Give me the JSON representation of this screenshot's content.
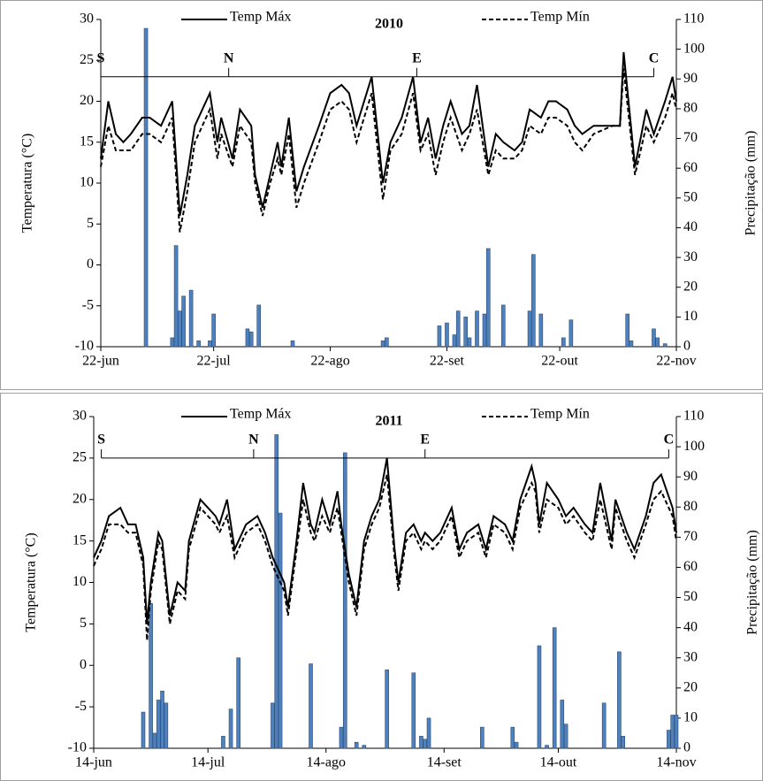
{
  "chart_data": [
    {
      "type": "combo",
      "title": "2010",
      "y_label": "Temperatura (°C)",
      "y2_label": "Precipitação (mm)",
      "xlim": [
        0,
        153
      ],
      "xticks": [
        {
          "value": 0,
          "label": "22-jun"
        },
        {
          "value": 30,
          "label": "22-jul"
        },
        {
          "value": 61,
          "label": "22-ago"
        },
        {
          "value": 92,
          "label": "22-set"
        },
        {
          "value": 122,
          "label": "22-out"
        },
        {
          "value": 153,
          "label": "22-nov"
        }
      ],
      "ylim": [
        -10,
        30
      ],
      "yticks": [
        -10,
        -5,
        0,
        5,
        10,
        15,
        20,
        25,
        30
      ],
      "y2lim": [
        0,
        110
      ],
      "y2ticks": [
        0,
        10,
        20,
        30,
        40,
        50,
        60,
        70,
        80,
        90,
        100,
        110
      ],
      "markers": [
        {
          "label": "S",
          "x": 0
        },
        {
          "label": "N",
          "x": 34
        },
        {
          "label": "E",
          "x": 84
        },
        {
          "label": "C",
          "x": 147
        }
      ],
      "marker_level": 23,
      "series": [
        {
          "name": "Temp Máx",
          "color": "#000000",
          "style": "solid",
          "x": [
            0,
            2,
            4,
            6,
            8,
            11,
            13,
            16,
            19,
            21,
            23,
            25,
            28,
            29,
            31,
            32,
            35,
            37,
            40,
            41,
            43,
            45,
            47,
            48,
            50,
            52,
            54,
            58,
            61,
            64,
            66,
            68,
            72,
            75,
            77,
            80,
            83,
            85,
            87,
            89,
            91,
            93,
            96,
            98,
            100,
            103,
            105,
            107,
            110,
            112,
            114,
            117,
            119,
            121,
            124,
            126,
            128,
            131,
            136,
            138,
            139,
            142,
            145,
            147,
            150,
            152,
            153
          ],
          "values": [
            13,
            20,
            16,
            15,
            16,
            18,
            18,
            17,
            20,
            6,
            11,
            17,
            20,
            21,
            15,
            18,
            13,
            19,
            17,
            11,
            7,
            11,
            15,
            12,
            18,
            9,
            12,
            17,
            21,
            22,
            21,
            17,
            23,
            10,
            15,
            18,
            23,
            15,
            18,
            13,
            17,
            20,
            16,
            17,
            22,
            12,
            16,
            15,
            14,
            15,
            19,
            18,
            20,
            20,
            19,
            17,
            16,
            17,
            17,
            17,
            26,
            12,
            19,
            16,
            20,
            23,
            20
          ]
        },
        {
          "name": "Temp Mín",
          "color": "#000000",
          "style": "dashed",
          "x": [
            0,
            2,
            4,
            6,
            8,
            11,
            13,
            16,
            19,
            21,
            23,
            25,
            28,
            29,
            31,
            32,
            35,
            37,
            40,
            41,
            43,
            45,
            47,
            48,
            50,
            52,
            54,
            58,
            61,
            64,
            66,
            68,
            72,
            75,
            77,
            80,
            83,
            85,
            87,
            89,
            91,
            93,
            96,
            98,
            100,
            103,
            105,
            107,
            110,
            112,
            114,
            117,
            119,
            121,
            124,
            126,
            128,
            131,
            136,
            138,
            139,
            142,
            145,
            147,
            150,
            152,
            153
          ],
          "values": [
            12,
            17,
            14,
            14,
            14,
            16,
            16,
            15,
            18,
            4,
            9,
            15,
            18,
            19,
            13,
            16,
            12,
            17,
            15,
            10,
            6,
            10,
            13,
            11,
            16,
            7,
            10,
            15,
            19,
            20,
            19,
            15,
            21,
            8,
            14,
            16,
            21,
            14,
            16,
            11,
            15,
            18,
            14,
            16,
            19,
            11,
            14,
            13,
            13,
            14,
            17,
            16,
            18,
            18,
            17,
            15,
            14,
            16,
            17,
            17,
            24,
            11,
            17,
            15,
            18,
            21,
            19
          ]
        }
      ],
      "bars": {
        "color": "#4f81bd",
        "axis": "y2",
        "x": [
          12,
          19,
          20,
          21,
          22,
          24,
          26,
          29,
          30,
          39,
          40,
          42,
          51,
          75,
          76,
          90,
          92,
          94,
          95,
          97,
          98,
          100,
          102,
          103,
          107,
          114,
          115,
          117,
          123,
          125,
          140,
          141,
          147,
          148,
          150
        ],
        "values": [
          107,
          3,
          34,
          12,
          17,
          19,
          2,
          2,
          11,
          6,
          5,
          14,
          2,
          2,
          3,
          7,
          8,
          4,
          12,
          10,
          3,
          12,
          11,
          33,
          14,
          12,
          31,
          11,
          3,
          9,
          11,
          2,
          6,
          3,
          1
        ]
      }
    },
    {
      "type": "combo",
      "title": "2011",
      "y_label": "Temperatura (°C)",
      "y2_label": "Precipitação (mm)",
      "xlim": [
        0,
        153
      ],
      "xticks": [
        {
          "value": 0,
          "label": "14-jun"
        },
        {
          "value": 30,
          "label": "14-jul"
        },
        {
          "value": 61,
          "label": "14-ago"
        },
        {
          "value": 92,
          "label": "14-set"
        },
        {
          "value": 122,
          "label": "14-out"
        },
        {
          "value": 153,
          "label": "14-nov"
        }
      ],
      "ylim": [
        -10,
        30
      ],
      "yticks": [
        -10,
        -5,
        0,
        5,
        10,
        15,
        20,
        25,
        30
      ],
      "y2lim": [
        0,
        110
      ],
      "y2ticks": [
        0,
        10,
        20,
        30,
        40,
        50,
        60,
        70,
        80,
        90,
        100,
        110
      ],
      "markers": [
        {
          "label": "S",
          "x": 2
        },
        {
          "label": "N",
          "x": 42
        },
        {
          "label": "E",
          "x": 87
        },
        {
          "label": "C",
          "x": 151
        }
      ],
      "marker_level": 25,
      "series": [
        {
          "name": "Temp Máx",
          "color": "#000000",
          "style": "solid",
          "x": [
            0,
            2,
            4,
            7,
            9,
            11,
            13,
            14,
            15,
            17,
            18,
            20,
            22,
            24,
            25,
            28,
            30,
            32,
            33,
            35,
            37,
            39,
            40,
            43,
            45,
            47,
            50,
            51,
            53,
            55,
            57,
            58,
            60,
            62,
            64,
            65,
            67,
            69,
            71,
            73,
            75,
            77,
            79,
            80,
            82,
            84,
            86,
            87,
            89,
            91,
            94,
            96,
            98,
            101,
            103,
            105,
            108,
            110,
            112,
            115,
            116,
            117,
            119,
            122,
            124,
            126,
            129,
            131,
            133,
            136,
            137,
            140,
            142,
            145,
            147,
            149,
            152,
            153
          ],
          "values": [
            13,
            15,
            18,
            19,
            17,
            17,
            13,
            5,
            10,
            16,
            15,
            6,
            10,
            9,
            15,
            20,
            19,
            18,
            17,
            20,
            14,
            16,
            17,
            18,
            16,
            13,
            10,
            7,
            14,
            22,
            17,
            16,
            20,
            17,
            21,
            17,
            11,
            7,
            15,
            18,
            20,
            25,
            14,
            10,
            16,
            17,
            15,
            16,
            15,
            16,
            19,
            14,
            16,
            17,
            14,
            18,
            17,
            15,
            20,
            24,
            22,
            17,
            22,
            20,
            18,
            19,
            17,
            16,
            22,
            15,
            20,
            16,
            14,
            18,
            22,
            23,
            19,
            16
          ]
        },
        {
          "name": "Temp Mín",
          "color": "#000000",
          "style": "dashed",
          "x": [
            0,
            2,
            4,
            7,
            9,
            11,
            13,
            14,
            15,
            17,
            18,
            20,
            22,
            24,
            25,
            28,
            30,
            32,
            33,
            35,
            37,
            39,
            40,
            43,
            45,
            47,
            50,
            51,
            53,
            55,
            57,
            58,
            60,
            62,
            64,
            65,
            67,
            69,
            71,
            73,
            75,
            77,
            79,
            80,
            82,
            84,
            86,
            87,
            89,
            91,
            94,
            96,
            98,
            101,
            103,
            105,
            108,
            110,
            112,
            115,
            116,
            117,
            119,
            122,
            124,
            126,
            129,
            131,
            133,
            136,
            137,
            140,
            142,
            145,
            147,
            149,
            152,
            153
          ],
          "values": [
            12,
            14,
            17,
            17,
            16,
            16,
            12,
            3,
            9,
            15,
            14,
            5,
            9,
            8,
            14,
            19,
            18,
            17,
            16,
            18,
            13,
            15,
            16,
            17,
            15,
            12,
            9,
            6,
            13,
            20,
            16,
            15,
            18,
            16,
            19,
            16,
            10,
            6,
            14,
            17,
            19,
            23,
            13,
            9,
            15,
            16,
            14,
            15,
            14,
            15,
            18,
            13,
            15,
            16,
            13,
            17,
            16,
            14,
            19,
            22,
            21,
            16,
            20,
            19,
            17,
            18,
            16,
            15,
            20,
            14,
            19,
            15,
            13,
            17,
            20,
            21,
            18,
            15
          ]
        }
      ],
      "bars": {
        "color": "#4f81bd",
        "axis": "y2",
        "x": [
          13,
          15,
          16,
          17,
          18,
          19,
          34,
          36,
          38,
          47,
          48,
          49,
          57,
          65,
          66,
          69,
          71,
          77,
          84,
          86,
          87,
          88,
          102,
          110,
          111,
          117,
          119,
          121,
          123,
          124,
          134,
          138,
          139,
          151,
          152,
          153
        ],
        "values": [
          12,
          48,
          5,
          16,
          19,
          15,
          4,
          13,
          30,
          15,
          104,
          78,
          28,
          7,
          98,
          2,
          1,
          26,
          25,
          4,
          3,
          10,
          7,
          7,
          2,
          34,
          1,
          40,
          16,
          8,
          15,
          32,
          4,
          6,
          11,
          11
        ]
      }
    }
  ]
}
